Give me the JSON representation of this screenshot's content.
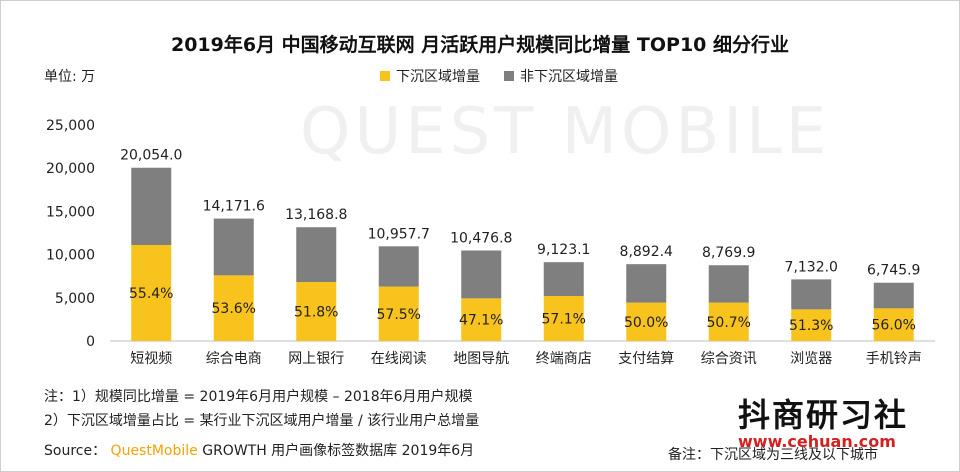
{
  "title": "2019年6月 中国移动互联网 月活跃用户规模同比增量 TOP10 细分行业",
  "unit_label": "单位: 万",
  "legend": {
    "series1": "下沉区域增量",
    "series2": "非下沉区域增量"
  },
  "watermark": "QUEST MOBILE",
  "colors": {
    "series1": "#F9C31E",
    "series2": "#7F7F7F"
  },
  "chart_data": {
    "type": "bar",
    "stacked": true,
    "categories": [
      "短视频",
      "综合电商",
      "网上银行",
      "在线阅读",
      "地图导航",
      "终端商店",
      "支付结算",
      "综合资讯",
      "浏览器",
      "手机铃声"
    ],
    "totals": [
      20054.0,
      14171.6,
      13168.8,
      10957.7,
      10476.8,
      9123.1,
      8892.4,
      8769.9,
      7132.0,
      6745.9
    ],
    "total_labels": [
      "20,054.0",
      "14,171.6",
      "13,168.8",
      "10,957.7",
      "10,476.8",
      "9,123.1",
      "8,892.4",
      "8,769.9",
      "7,132.0",
      "6,745.9"
    ],
    "share_labels": [
      "55.4%",
      "53.6%",
      "51.8%",
      "57.5%",
      "47.1%",
      "57.1%",
      "50.0%",
      "50.7%",
      "51.3%",
      "56.0%"
    ],
    "series": [
      {
        "name": "下沉区域增量",
        "values": [
          11109.9,
          7596.0,
          6821.4,
          6300.7,
          4934.6,
          5209.3,
          4446.2,
          4446.3,
          3658.7,
          3777.7
        ]
      },
      {
        "name": "非下沉区域增量",
        "values": [
          8944.1,
          6575.6,
          6347.4,
          4657.0,
          5542.2,
          3913.8,
          4446.2,
          4323.6,
          3473.3,
          2968.2
        ]
      }
    ],
    "ylim": [
      0,
      25000
    ],
    "yticks": [
      "0",
      "5,000",
      "10,000",
      "15,000",
      "20,000",
      "25,000"
    ],
    "ytick_values": [
      0,
      5000,
      10000,
      15000,
      20000,
      25000
    ],
    "grid": false
  },
  "notes": {
    "line1": "注：1）规模同比增量 = 2019年6月用户规模 – 2018年6月用户规模",
    "line2": "2）下沉区域增量占比 = 某行业下沉区域用户增量 / 该行业用户总增量",
    "source_prefix": "Source：",
    "source_brand": "QuestMobile",
    "source_suffix": "GROWTH 用户画像标签数据库 2019年6月"
  },
  "brand": "抖商研习社",
  "site": "www.cehuan.com",
  "remark": "备注：下沉区域为三线及以下城市"
}
